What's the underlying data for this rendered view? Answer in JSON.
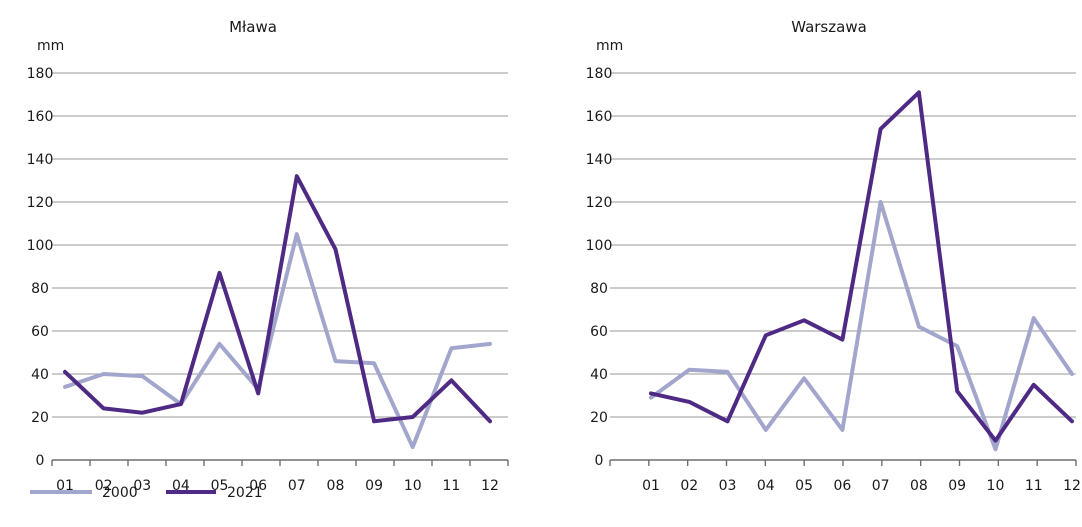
{
  "chart_data": [
    {
      "type": "line",
      "title": "Mława",
      "ylabel": "mm",
      "ylim": [
        0,
        180
      ],
      "yticks": [
        "0",
        "20",
        "40",
        "60",
        "80",
        "100",
        "120",
        "140",
        "160",
        "180"
      ],
      "categories": [
        "01",
        "02",
        "03",
        "04",
        "05",
        "06",
        "07",
        "08",
        "09",
        "10",
        "11",
        "12"
      ],
      "series": [
        {
          "name": "2000",
          "values": [
            34,
            40,
            39,
            26,
            54,
            33,
            105,
            46,
            45,
            6,
            52,
            54
          ]
        },
        {
          "name": "2021",
          "values": [
            41,
            24,
            22,
            26,
            87,
            31,
            132,
            98,
            18,
            20,
            37,
            18
          ]
        }
      ],
      "grid": true
    },
    {
      "type": "line",
      "title": "Warszawa",
      "ylabel": "mm",
      "ylim": [
        0,
        180
      ],
      "yticks": [
        "0",
        "20",
        "40",
        "60",
        "80",
        "100",
        "120",
        "140",
        "160",
        "180"
      ],
      "categories": [
        "01",
        "02",
        "03",
        "04",
        "05",
        "06",
        "07",
        "08",
        "09",
        "10",
        "11",
        "12"
      ],
      "series": [
        {
          "name": "2000",
          "values": [
            29,
            42,
            41,
            14,
            38,
            14,
            120,
            62,
            53,
            5,
            66,
            40
          ]
        },
        {
          "name": "2021",
          "values": [
            31,
            27,
            18,
            58,
            65,
            56,
            154,
            171,
            32,
            9,
            35,
            18
          ]
        }
      ],
      "grid": true
    }
  ],
  "legend": [
    {
      "name": "2000",
      "color": "#a3a6cc"
    },
    {
      "name": "2021",
      "color": "#4e2a84"
    }
  ],
  "colors": {
    "series_2000": "#a3a6cc",
    "series_2021": "#4e2a84"
  }
}
